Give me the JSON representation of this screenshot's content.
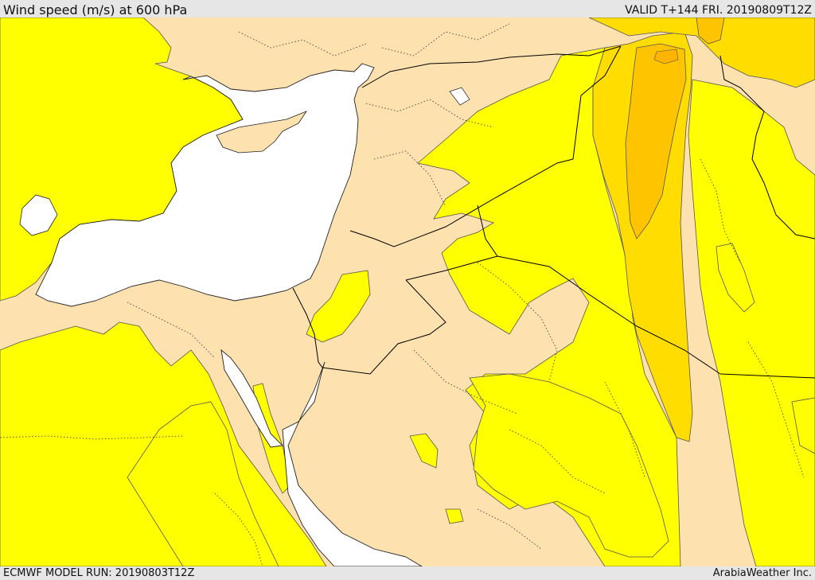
{
  "header": {
    "title": "Wind speed (m/s) at 600 hPa",
    "valid": "VALID T+144 FRI. 20190809T12Z"
  },
  "footer": {
    "model_run": "ECMWF MODEL RUN: 20190803T12Z",
    "credit": "ArabiaWeather Inc."
  },
  "colors": {
    "land_calm": "#fde1ae",
    "band_1": "#ffff00",
    "band_2": "#ffdd00",
    "band_3": "#ffc400",
    "band_4": "#ffb400",
    "sea": "#ffffff",
    "border_line": "#000000",
    "contour_line": "#555555"
  }
}
